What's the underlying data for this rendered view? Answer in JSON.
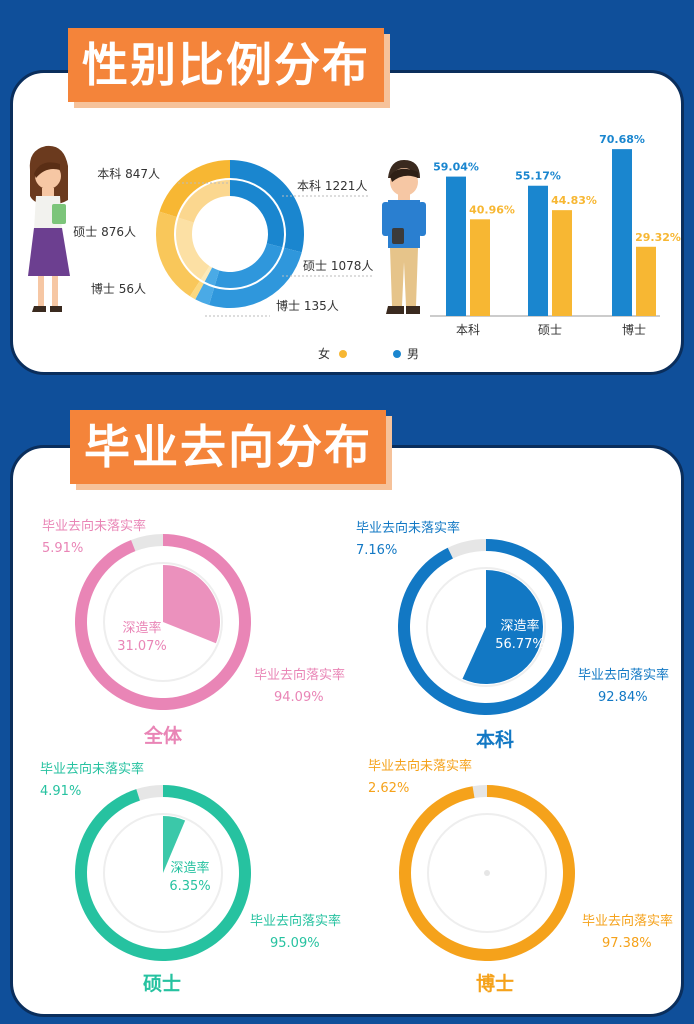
{
  "sections": {
    "gender_title": "性别比例分布",
    "destination_title": "毕业去向分布"
  },
  "colors": {
    "female": "#f7b733",
    "male": "#1a86cf",
    "banner": "#f4843a",
    "pink": "#e985b6",
    "blue": "#1278c4",
    "teal": "#26c2a0",
    "orange": "#f5a21b"
  },
  "icons": [
    "female-student-illustration",
    "male-student-illustration"
  ],
  "chart_data": [
    {
      "type": "pie",
      "subtype": "donut",
      "series": [
        {
          "name": "女",
          "labels": [
            "本科 847人",
            "硕士 876人",
            "博士 56人"
          ],
          "values": [
            847,
            876,
            56
          ]
        },
        {
          "name": "男",
          "labels": [
            "本科 1221人",
            "硕士 1078人",
            "博士 135人"
          ],
          "values": [
            1221,
            1078,
            135
          ]
        }
      ],
      "legend": {
        "entries": [
          "女",
          "男"
        ],
        "placement": "bottom"
      }
    },
    {
      "type": "bar",
      "categories": [
        "本科",
        "硕士",
        "博士"
      ],
      "series": [
        {
          "name": "男",
          "values": [
            59.04,
            55.17,
            70.68
          ],
          "labels": [
            "59.04%",
            "55.17%",
            "70.68%"
          ]
        },
        {
          "name": "女",
          "values": [
            40.96,
            44.83,
            29.32
          ],
          "labels": [
            "40.96%",
            "44.83%",
            "29.32%"
          ]
        }
      ],
      "ylim": [
        0,
        100
      ],
      "grid": false
    },
    {
      "type": "pie",
      "subtype": "ring-with-wedge",
      "charts": [
        {
          "title": "全体",
          "color": "#e985b6",
          "wedge_label": "深造率",
          "wedge_value": 31.07,
          "wedge_text": "31.07%",
          "ring_label": "毕业去向落实率",
          "ring_value": 94.09,
          "ring_text": "94.09%",
          "gap_label": "毕业去向未落实率",
          "gap_value": 5.91,
          "gap_text": "5.91%"
        },
        {
          "title": "本科",
          "color": "#1278c4",
          "wedge_label": "深造率",
          "wedge_value": 56.77,
          "wedge_text": "56.77%",
          "ring_label": "毕业去向落实率",
          "ring_value": 92.84,
          "ring_text": "92.84%",
          "gap_label": "毕业去向未落实率",
          "gap_value": 7.16,
          "gap_text": "7.16%"
        },
        {
          "title": "硕士",
          "color": "#26c2a0",
          "wedge_label": "深造率",
          "wedge_value": 6.35,
          "wedge_text": "6.35%",
          "ring_label": "毕业去向落实率",
          "ring_value": 95.09,
          "ring_text": "95.09%",
          "gap_label": "毕业去向未落实率",
          "gap_value": 4.91,
          "gap_text": "4.91%"
        },
        {
          "title": "博士",
          "color": "#f5a21b",
          "wedge_label": "",
          "wedge_value": 0,
          "wedge_text": "",
          "ring_label": "毕业去向落实率",
          "ring_value": 97.38,
          "ring_text": "97.38%",
          "gap_label": "毕业去向未落实率",
          "gap_value": 2.62,
          "gap_text": "2.62%"
        }
      ]
    }
  ]
}
